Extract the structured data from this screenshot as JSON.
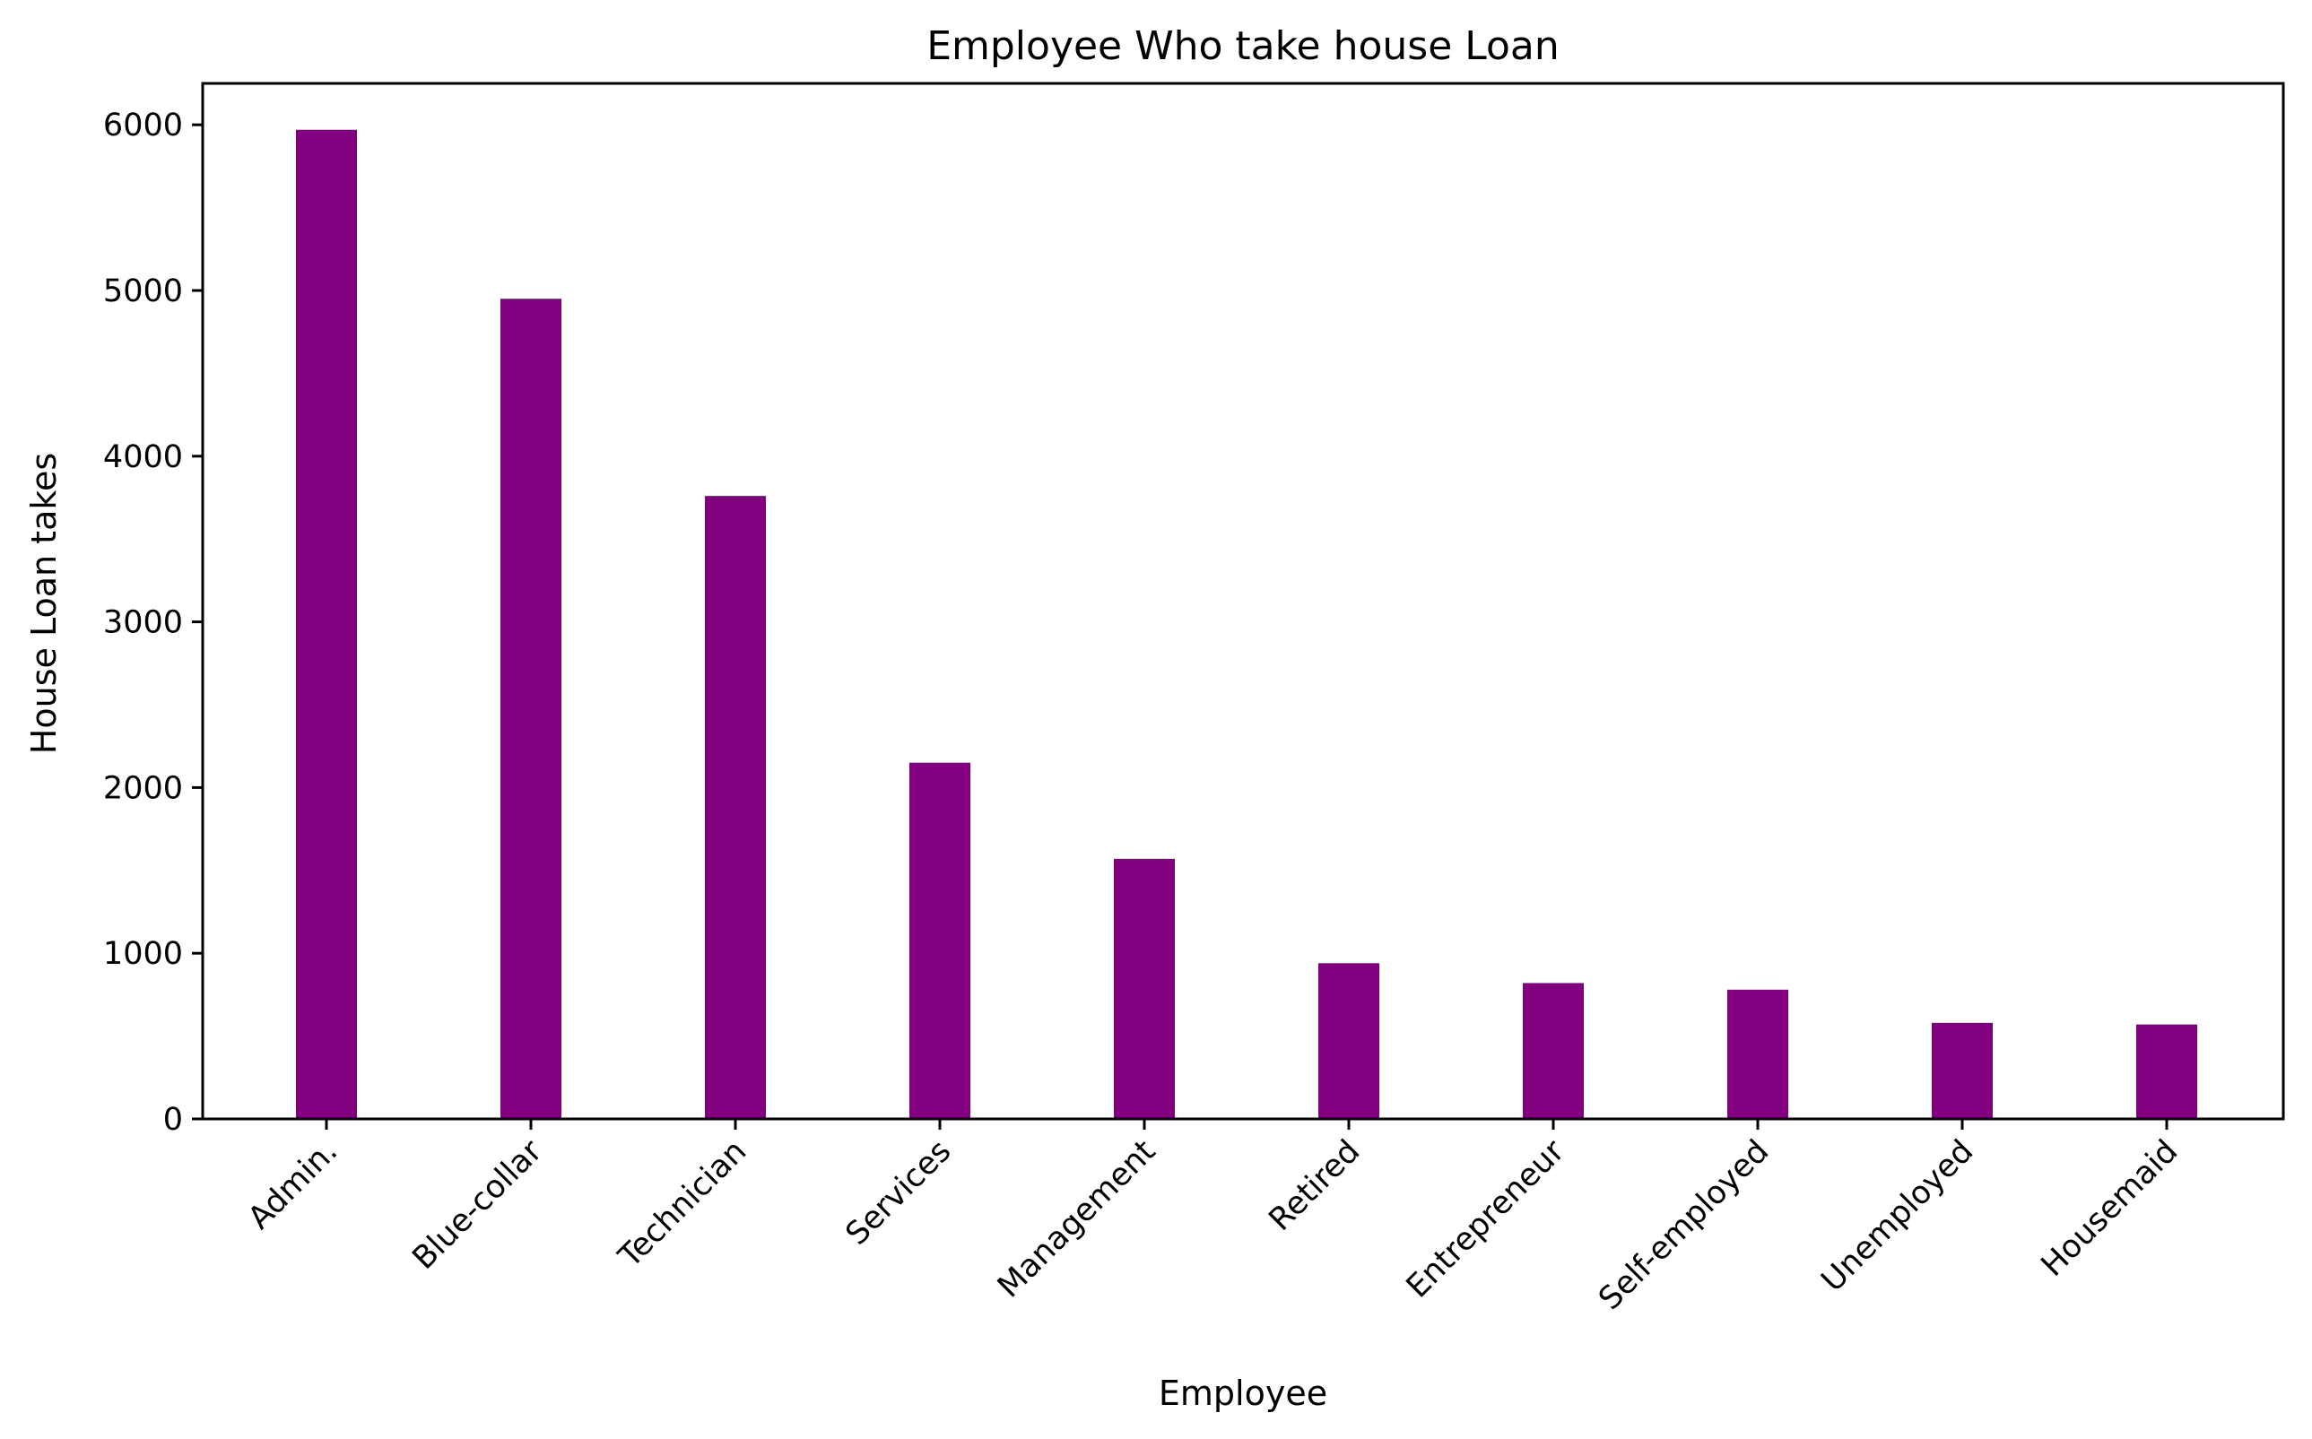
{
  "chart_data": {
    "type": "bar",
    "title": "Employee Who take house Loan",
    "xlabel": "Employee",
    "ylabel": "House Loan takes",
    "categories": [
      "Admin.",
      "Blue-collar",
      "Technician",
      "Services",
      "Management",
      "Retired",
      "Entrepreneur",
      "Self-employed",
      "Unemployed",
      "Housemaid"
    ],
    "values": [
      5970,
      4950,
      3760,
      2150,
      1570,
      940,
      820,
      780,
      580,
      570
    ],
    "ylim": [
      0,
      6250
    ],
    "yticks": [
      0,
      1000,
      2000,
      3000,
      4000,
      5000,
      6000
    ],
    "bar_color": "#800080",
    "grid": false,
    "legend": "none"
  }
}
